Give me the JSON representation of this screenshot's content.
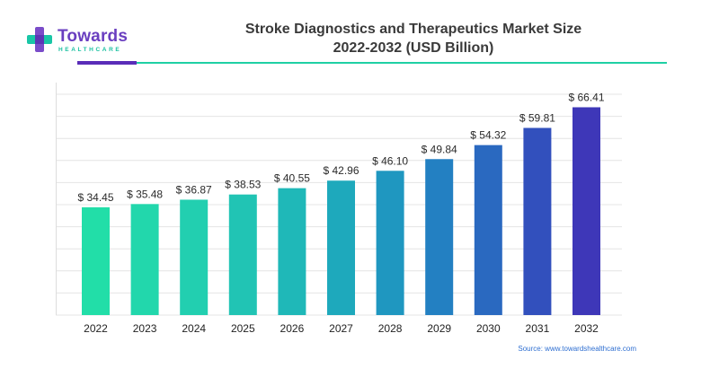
{
  "brand": {
    "name": "Towards",
    "tagline": "HEALTHCARE",
    "colors": {
      "purple": "#6a3fc0",
      "teal": "#19c0a0",
      "blue": "#2f6fd1"
    }
  },
  "header": {
    "title_line1": "Stroke Diagnostics and Therapeutics Market Size",
    "title_line2": "2022-2032 (USD Billion)"
  },
  "source_text": "Source: www.towardshealthcare.com",
  "chart_data": {
    "type": "bar",
    "title": "Stroke Diagnostics and Therapeutics Market Size 2022-2032 (USD Billion)",
    "xlabel": "",
    "ylabel": "",
    "categories": [
      "2022",
      "2023",
      "2024",
      "2025",
      "2026",
      "2027",
      "2028",
      "2029",
      "2030",
      "2031",
      "2032"
    ],
    "values": [
      34.45,
      35.48,
      36.87,
      38.53,
      40.55,
      42.96,
      46.1,
      49.84,
      54.32,
      59.81,
      66.41
    ],
    "value_labels": [
      "$ 34.45",
      "$ 35.48",
      "$ 36.87",
      "$ 38.53",
      "$ 40.55",
      "$ 42.96",
      "$ 46.10",
      "$ 49.84",
      "$ 54.32",
      "$ 59.81",
      "$ 66.41"
    ],
    "ylim": [
      0,
      70
    ],
    "grid": true,
    "legend": "none",
    "bar_colors": [
      "#22dea8",
      "#22d7ac",
      "#22cfb0",
      "#21c4b4",
      "#1fb8b8",
      "#1ea9bc",
      "#1f97c0",
      "#2380c2",
      "#2a69c0",
      "#3250bd",
      "#3e37b8"
    ]
  }
}
